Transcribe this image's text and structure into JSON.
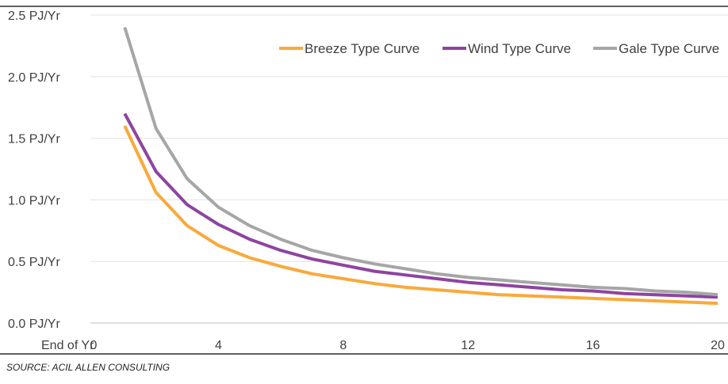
{
  "source": "SOURCE: ACIL ALLEN CONSULTING",
  "chart_data": {
    "type": "line",
    "title": "",
    "xlabel": "",
    "ylabel": "",
    "xlim": [
      0,
      20
    ],
    "ylim": [
      0,
      2.5
    ],
    "x_ticks": [
      {
        "value": 0,
        "label": "0"
      },
      {
        "value": 4,
        "label": "4"
      },
      {
        "value": 8,
        "label": "8"
      },
      {
        "value": 12,
        "label": "12"
      },
      {
        "value": 16,
        "label": "16"
      },
      {
        "value": 20,
        "label": "20"
      }
    ],
    "x_axis_prefix_label": "End of Yr",
    "y_ticks": [
      {
        "value": 0,
        "label": "0.0 PJ/Yr"
      },
      {
        "value": 0.5,
        "label": "0.5 PJ/Yr"
      },
      {
        "value": 1.0,
        "label": "1.0 PJ/Yr"
      },
      {
        "value": 1.5,
        "label": "1.5 PJ/Yr"
      },
      {
        "value": 2.0,
        "label": "2.0 PJ/Yr"
      },
      {
        "value": 2.5,
        "label": "2.5 PJ/Yr"
      }
    ],
    "grid": "horizontal",
    "legend_position": "top-right",
    "x": [
      1,
      2,
      3,
      4,
      5,
      6,
      7,
      8,
      9,
      10,
      11,
      12,
      13,
      14,
      15,
      16,
      17,
      18,
      19,
      20
    ],
    "series": [
      {
        "name": "Breeze Type Curve",
        "color": "#F9A93B",
        "values": [
          1.6,
          1.06,
          0.79,
          0.63,
          0.53,
          0.46,
          0.4,
          0.36,
          0.32,
          0.29,
          0.27,
          0.25,
          0.23,
          0.22,
          0.21,
          0.2,
          0.19,
          0.18,
          0.17,
          0.16
        ]
      },
      {
        "name": "Wind Type Curve",
        "color": "#8E44A0",
        "values": [
          1.7,
          1.23,
          0.96,
          0.8,
          0.68,
          0.59,
          0.52,
          0.47,
          0.42,
          0.39,
          0.36,
          0.33,
          0.31,
          0.29,
          0.27,
          0.26,
          0.24,
          0.23,
          0.22,
          0.21
        ]
      },
      {
        "name": "Gale Type Curve",
        "color": "#A6A6A6",
        "values": [
          2.4,
          1.58,
          1.17,
          0.94,
          0.79,
          0.68,
          0.59,
          0.53,
          0.48,
          0.44,
          0.4,
          0.37,
          0.35,
          0.33,
          0.31,
          0.29,
          0.28,
          0.26,
          0.25,
          0.23
        ]
      }
    ]
  }
}
